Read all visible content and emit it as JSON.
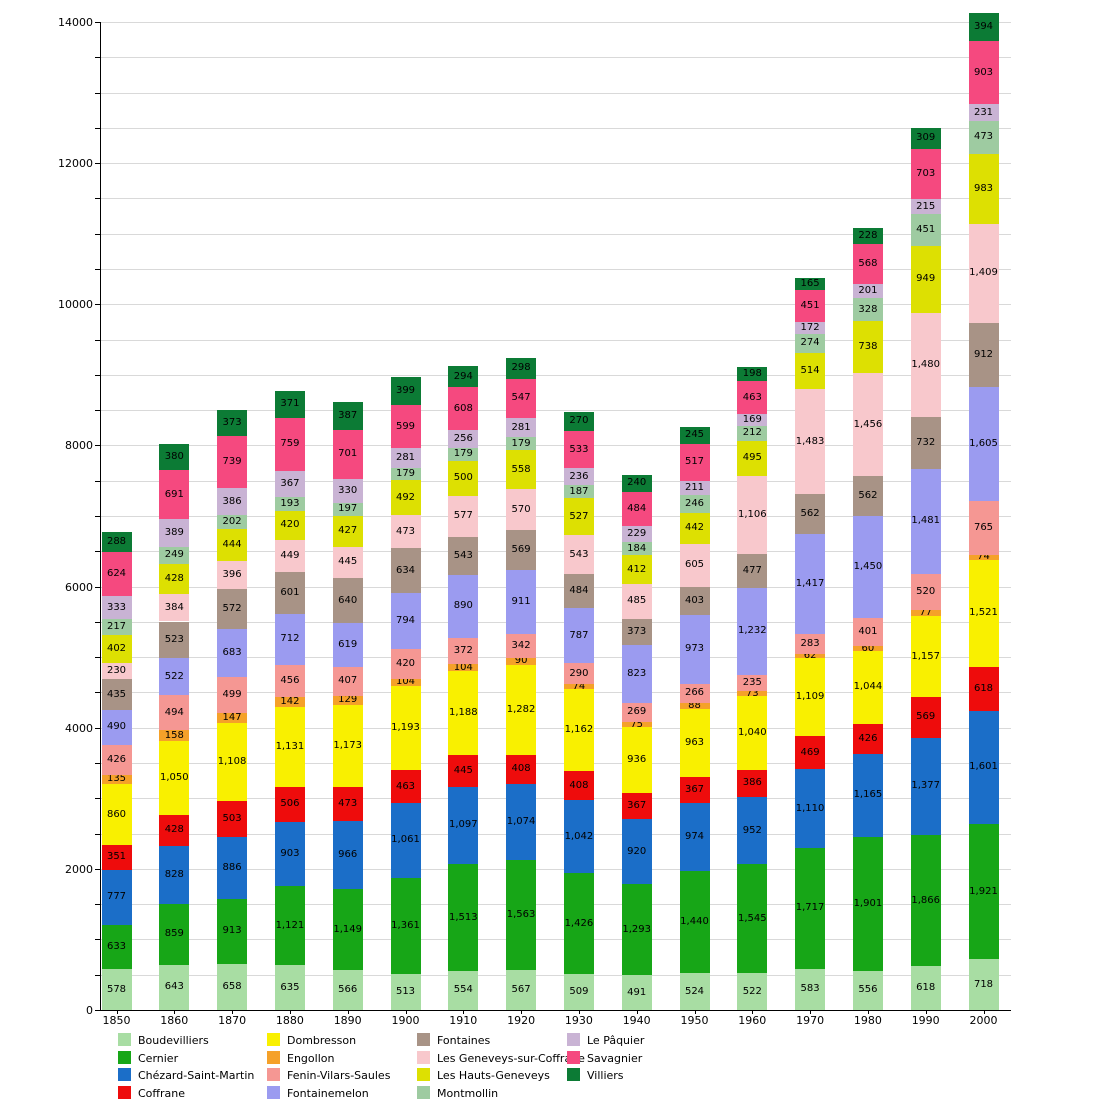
{
  "chart_data": {
    "type": "bar",
    "stacked": true,
    "title": "",
    "xlabel": "",
    "ylabel": "",
    "ylim": [
      0,
      14000
    ],
    "yticks": [
      0,
      2000,
      4000,
      6000,
      8000,
      10000,
      12000,
      14000
    ],
    "grid_interval": 500,
    "grid": true,
    "legend_position": "bottom",
    "categories": [
      "1850",
      "1860",
      "1870",
      "1880",
      "1890",
      "1900",
      "1910",
      "1920",
      "1930",
      "1940",
      "1950",
      "1960",
      "1970",
      "1980",
      "1990",
      "2000"
    ],
    "series": [
      {
        "name": "Boudevilliers",
        "color": "#a8dda3",
        "values": [
          578,
          643,
          658,
          635,
          566,
          513,
          554,
          567,
          509,
          491,
          524,
          522,
          583,
          556,
          618,
          718
        ]
      },
      {
        "name": "Cernier",
        "color": "#17a617",
        "values": [
          633,
          859,
          913,
          1121,
          1149,
          1361,
          1513,
          1563,
          1426,
          1293,
          1440,
          1545,
          1717,
          1901,
          1866,
          1921
        ]
      },
      {
        "name": "Chézard-Saint-Martin",
        "color": "#1b6ec8",
        "values": [
          777,
          828,
          886,
          903,
          966,
          1061,
          1097,
          1074,
          1042,
          920,
          974,
          952,
          1110,
          1165,
          1377,
          1601
        ]
      },
      {
        "name": "Coffrane",
        "color": "#ee0c0c",
        "values": [
          351,
          428,
          503,
          506,
          473,
          463,
          445,
          408,
          408,
          367,
          367,
          386,
          469,
          426,
          569,
          618
        ]
      },
      {
        "name": "Dombresson",
        "color": "#f9f000",
        "values": [
          860,
          1050,
          1108,
          1131,
          1173,
          1193,
          1188,
          1282,
          1162,
          936,
          963,
          1040,
          1109,
          1044,
          1157,
          1521
        ]
      },
      {
        "name": "Engollon",
        "color": "#f5a129",
        "values": [
          135,
          158,
          147,
          142,
          129,
          104,
          104,
          90,
          74,
          75,
          88,
          73,
          62,
          60,
          77,
          74
        ]
      },
      {
        "name": "Fenin-Vilars-Saules",
        "color": "#f59793",
        "values": [
          426,
          494,
          499,
          456,
          407,
          420,
          372,
          342,
          290,
          269,
          266,
          235,
          283,
          401,
          520,
          765
        ]
      },
      {
        "name": "Fontainemelon",
        "color": "#9b9bf0",
        "values": [
          490,
          522,
          683,
          712,
          619,
          794,
          890,
          911,
          787,
          823,
          973,
          1232,
          1417,
          1450,
          1481,
          1605
        ]
      },
      {
        "name": "Fontaines",
        "color": "#a89386",
        "values": [
          435,
          523,
          572,
          601,
          640,
          634,
          543,
          569,
          484,
          373,
          403,
          477,
          562,
          562,
          732,
          912
        ]
      },
      {
        "name": "Les Geneveys-sur-Coffrane",
        "color": "#f8c8cc",
        "values": [
          230,
          384,
          396,
          449,
          445,
          473,
          577,
          570,
          543,
          485,
          605,
          1106,
          1483,
          1456,
          1480,
          1409
        ]
      },
      {
        "name": "Les Hauts-Geneveys",
        "color": "#dde002",
        "values": [
          402,
          428,
          444,
          420,
          427,
          492,
          500,
          558,
          527,
          412,
          442,
          495,
          514,
          738,
          949,
          983
        ]
      },
      {
        "name": "Montmollin",
        "color": "#9ecba1",
        "values": [
          217,
          249,
          202,
          193,
          197,
          179,
          179,
          179,
          187,
          184,
          246,
          212,
          274,
          328,
          451,
          473
        ]
      },
      {
        "name": "Le Pâquier",
        "color": "#c9b3d4",
        "values": [
          333,
          389,
          386,
          367,
          330,
          281,
          256,
          281,
          236,
          229,
          211,
          169,
          172,
          201,
          215,
          231
        ]
      },
      {
        "name": "Savagnier",
        "color": "#f5497f",
        "values": [
          624,
          691,
          739,
          759,
          701,
          599,
          608,
          547,
          533,
          484,
          517,
          463,
          451,
          568,
          703,
          903
        ]
      },
      {
        "name": "Villiers",
        "color": "#0c7b35",
        "values": [
          288,
          380,
          373,
          371,
          387,
          399,
          294,
          298,
          270,
          240,
          245,
          198,
          165,
          228,
          309,
          394
        ]
      }
    ]
  }
}
